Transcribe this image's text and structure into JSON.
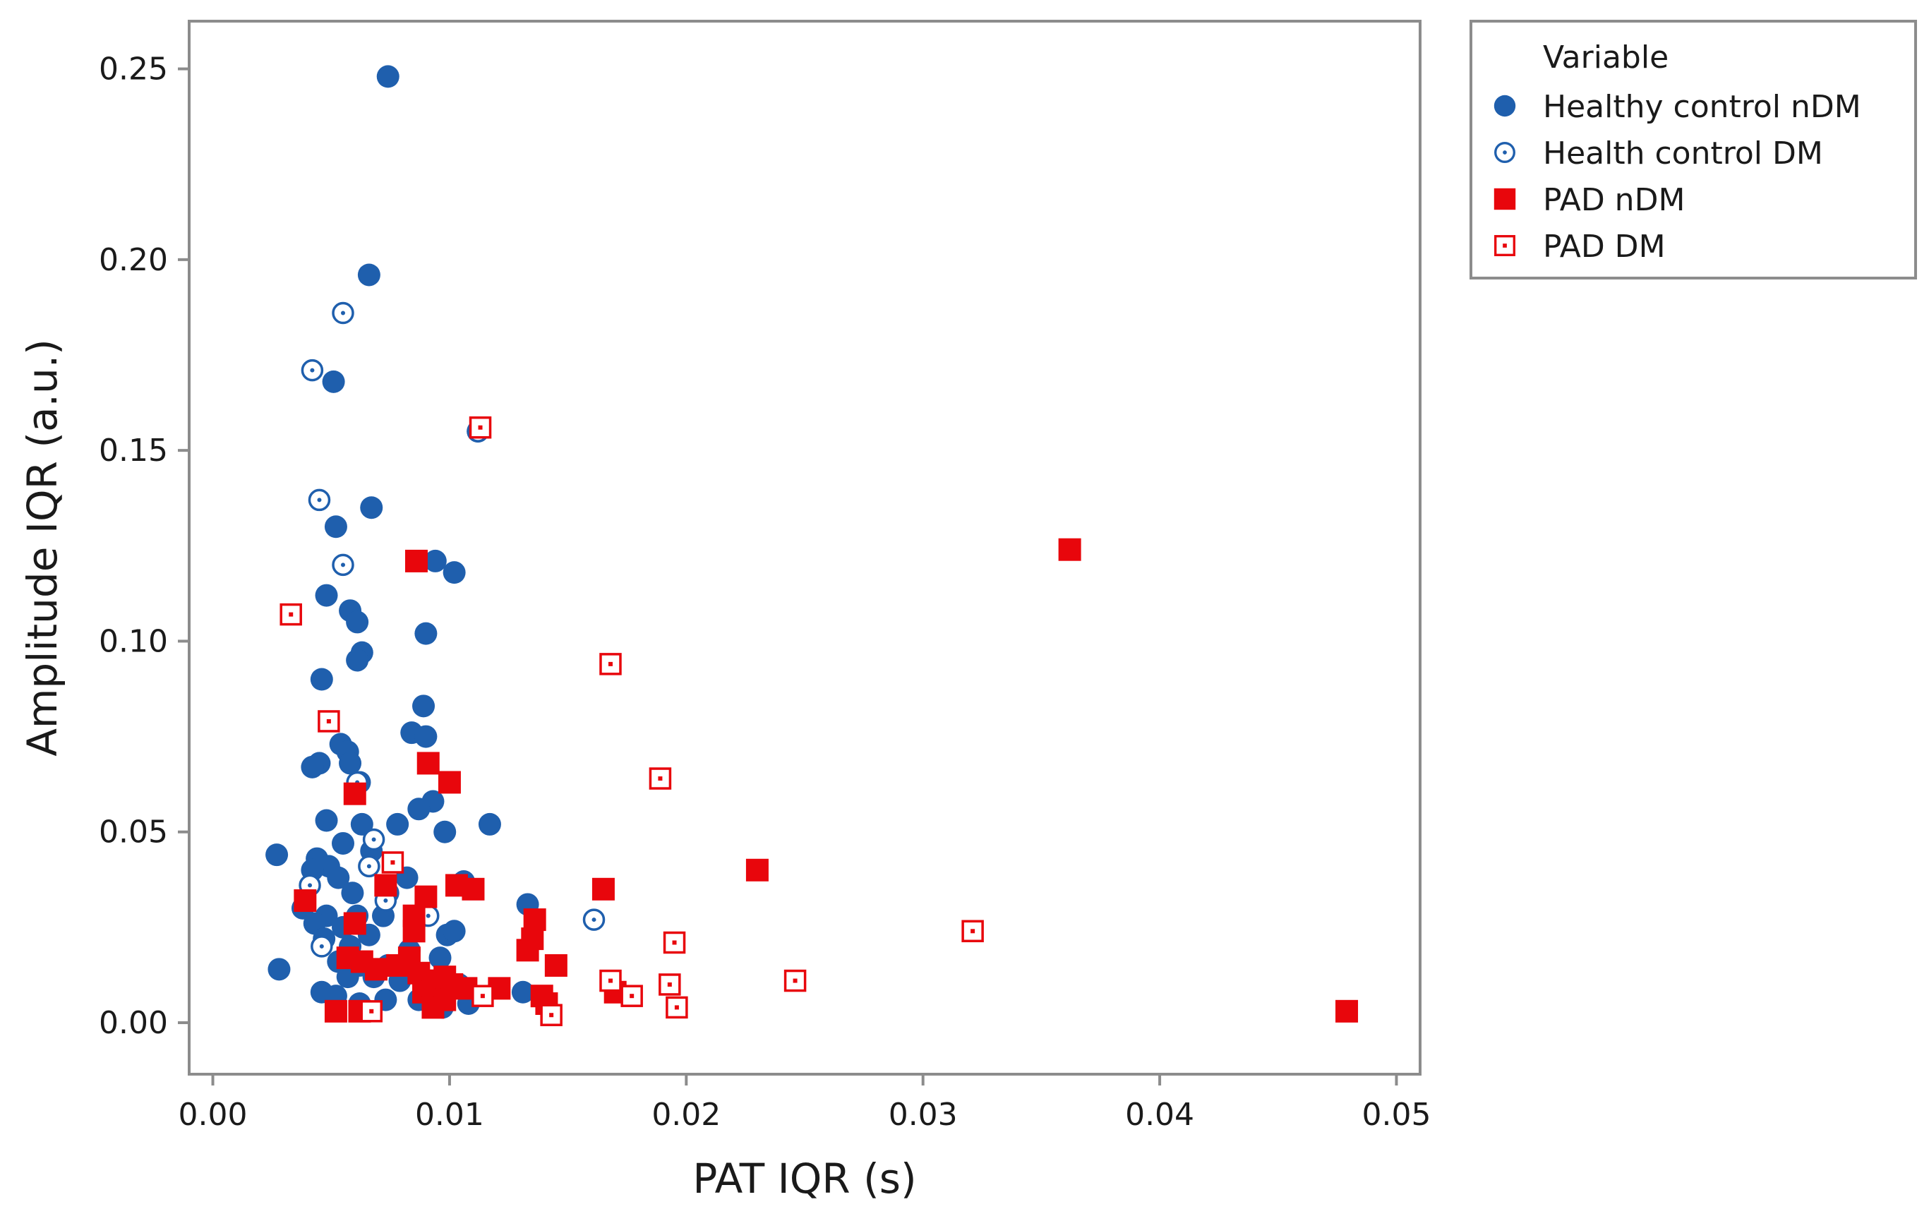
{
  "chart_data": {
    "type": "scatter",
    "title": "",
    "xlabel": "PAT IQR (s)",
    "ylabel": "Amplitude IQR (a.u.)",
    "xlim": [
      -0.001,
      0.051
    ],
    "ylim": [
      -0.0135,
      0.2625
    ],
    "x_ticks": [
      0.0,
      0.01,
      0.02,
      0.03,
      0.04,
      0.05
    ],
    "x_tick_labels": [
      "0.00",
      "0.01",
      "0.02",
      "0.03",
      "0.04",
      "0.05"
    ],
    "y_ticks": [
      0.0,
      0.05,
      0.1,
      0.15,
      0.2,
      0.25
    ],
    "y_tick_labels": [
      "0.00",
      "0.05",
      "0.10",
      "0.15",
      "0.20",
      "0.25"
    ],
    "grid": false,
    "legend_title": "Variable",
    "legend_position": "outside-top-right",
    "series": [
      {
        "name": "Healthy control nDM",
        "marker": "filled-circle",
        "color": "#1f5fad",
        "points": [
          [
            0.0074,
            0.248
          ],
          [
            0.0066,
            0.196
          ],
          [
            0.0051,
            0.168
          ],
          [
            0.0112,
            0.155
          ],
          [
            0.0067,
            0.135
          ],
          [
            0.0052,
            0.13
          ],
          [
            0.0094,
            0.121
          ],
          [
            0.0102,
            0.118
          ],
          [
            0.0048,
            0.112
          ],
          [
            0.0058,
            0.108
          ],
          [
            0.0061,
            0.105
          ],
          [
            0.009,
            0.102
          ],
          [
            0.0063,
            0.097
          ],
          [
            0.0061,
            0.095
          ],
          [
            0.0046,
            0.09
          ],
          [
            0.0089,
            0.083
          ],
          [
            0.0084,
            0.076
          ],
          [
            0.009,
            0.075
          ],
          [
            0.0054,
            0.073
          ],
          [
            0.0057,
            0.071
          ],
          [
            0.0045,
            0.068
          ],
          [
            0.0042,
            0.067
          ],
          [
            0.0058,
            0.068
          ],
          [
            0.0062,
            0.063
          ],
          [
            0.0093,
            0.058
          ],
          [
            0.0087,
            0.056
          ],
          [
            0.0048,
            0.053
          ],
          [
            0.0063,
            0.052
          ],
          [
            0.0078,
            0.052
          ],
          [
            0.0117,
            0.052
          ],
          [
            0.0098,
            0.05
          ],
          [
            0.0055,
            0.047
          ],
          [
            0.0067,
            0.045
          ],
          [
            0.0027,
            0.044
          ],
          [
            0.0044,
            0.043
          ],
          [
            0.0049,
            0.041
          ],
          [
            0.0042,
            0.04
          ],
          [
            0.0053,
            0.038
          ],
          [
            0.0082,
            0.038
          ],
          [
            0.0059,
            0.034
          ],
          [
            0.0074,
            0.034
          ],
          [
            0.0133,
            0.031
          ],
          [
            0.0038,
            0.03
          ],
          [
            0.0106,
            0.037
          ],
          [
            0.0048,
            0.028
          ],
          [
            0.0061,
            0.028
          ],
          [
            0.0072,
            0.028
          ],
          [
            0.0043,
            0.026
          ],
          [
            0.0055,
            0.025
          ],
          [
            0.0066,
            0.023
          ],
          [
            0.0099,
            0.023
          ],
          [
            0.0102,
            0.024
          ],
          [
            0.0047,
            0.022
          ],
          [
            0.0058,
            0.02
          ],
          [
            0.0083,
            0.019
          ],
          [
            0.0096,
            0.017
          ],
          [
            0.0053,
            0.016
          ],
          [
            0.0062,
            0.015
          ],
          [
            0.0074,
            0.015
          ],
          [
            0.0028,
            0.014
          ],
          [
            0.0085,
            0.013
          ],
          [
            0.0057,
            0.012
          ],
          [
            0.0068,
            0.012
          ],
          [
            0.0079,
            0.011
          ],
          [
            0.0104,
            0.01
          ],
          [
            0.0094,
            0.009
          ],
          [
            0.0046,
            0.008
          ],
          [
            0.0052,
            0.007
          ],
          [
            0.0131,
            0.008
          ],
          [
            0.0108,
            0.005
          ],
          [
            0.0062,
            0.005
          ],
          [
            0.0087,
            0.006
          ],
          [
            0.0097,
            0.004
          ],
          [
            0.0073,
            0.006
          ]
        ]
      },
      {
        "name": "Health control DM",
        "marker": "open-circle",
        "color": "#1f5fad",
        "points": [
          [
            0.0055,
            0.186
          ],
          [
            0.0042,
            0.171
          ],
          [
            0.0045,
            0.137
          ],
          [
            0.0055,
            0.12
          ],
          [
            0.0061,
            0.063
          ],
          [
            0.0068,
            0.048
          ],
          [
            0.0161,
            0.027
          ],
          [
            0.0091,
            0.028
          ],
          [
            0.0046,
            0.02
          ],
          [
            0.0041,
            0.036
          ],
          [
            0.0073,
            0.032
          ],
          [
            0.0112,
            0.155
          ],
          [
            0.0066,
            0.041
          ]
        ]
      },
      {
        "name": "PAD nDM",
        "marker": "filled-square",
        "color": "#e8060c",
        "points": [
          [
            0.0479,
            0.003
          ],
          [
            0.0362,
            0.124
          ],
          [
            0.023,
            0.04
          ],
          [
            0.0165,
            0.035
          ],
          [
            0.0086,
            0.121
          ],
          [
            0.0091,
            0.068
          ],
          [
            0.01,
            0.063
          ],
          [
            0.006,
            0.06
          ],
          [
            0.0073,
            0.036
          ],
          [
            0.0103,
            0.036
          ],
          [
            0.011,
            0.035
          ],
          [
            0.009,
            0.033
          ],
          [
            0.0039,
            0.032
          ],
          [
            0.0085,
            0.028
          ],
          [
            0.0136,
            0.027
          ],
          [
            0.006,
            0.026
          ],
          [
            0.0085,
            0.024
          ],
          [
            0.0135,
            0.022
          ],
          [
            0.0133,
            0.019
          ],
          [
            0.0057,
            0.017
          ],
          [
            0.0083,
            0.017
          ],
          [
            0.0063,
            0.016
          ],
          [
            0.0078,
            0.015
          ],
          [
            0.0145,
            0.015
          ],
          [
            0.0069,
            0.014
          ],
          [
            0.0087,
            0.013
          ],
          [
            0.0098,
            0.012
          ],
          [
            0.0093,
            0.011
          ],
          [
            0.0101,
            0.01
          ],
          [
            0.0121,
            0.009
          ],
          [
            0.0089,
            0.008
          ],
          [
            0.0107,
            0.009
          ],
          [
            0.0139,
            0.007
          ],
          [
            0.017,
            0.008
          ],
          [
            0.0098,
            0.006
          ],
          [
            0.0141,
            0.005
          ],
          [
            0.0052,
            0.003
          ],
          [
            0.0062,
            0.003
          ],
          [
            0.0093,
            0.004
          ]
        ]
      },
      {
        "name": "PAD DM",
        "marker": "open-square",
        "color": "#e8060c",
        "points": [
          [
            0.0113,
            0.156
          ],
          [
            0.0033,
            0.107
          ],
          [
            0.0168,
            0.094
          ],
          [
            0.0049,
            0.079
          ],
          [
            0.0189,
            0.064
          ],
          [
            0.0076,
            0.042
          ],
          [
            0.0321,
            0.024
          ],
          [
            0.0195,
            0.021
          ],
          [
            0.0246,
            0.011
          ],
          [
            0.0168,
            0.011
          ],
          [
            0.0193,
            0.01
          ],
          [
            0.0177,
            0.007
          ],
          [
            0.0114,
            0.007
          ],
          [
            0.0196,
            0.004
          ],
          [
            0.0067,
            0.003
          ],
          [
            0.0143,
            0.002
          ]
        ]
      }
    ]
  }
}
